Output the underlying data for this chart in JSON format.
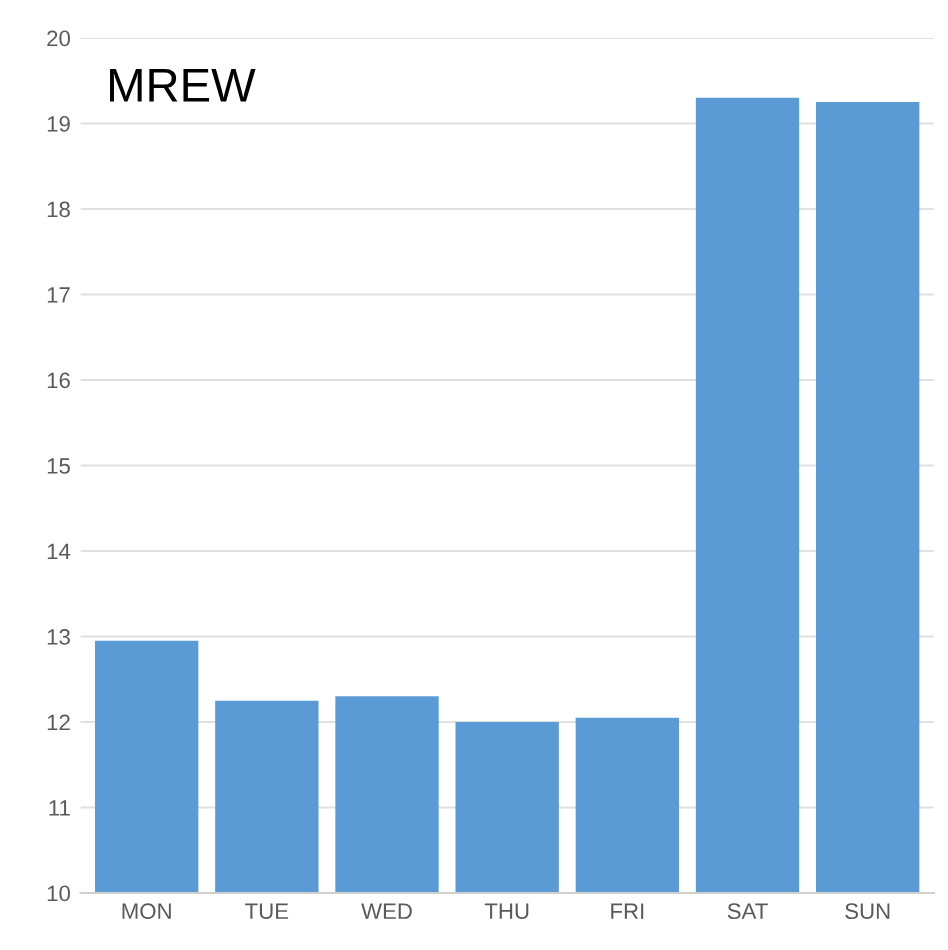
{
  "chart_data": {
    "type": "bar",
    "title": "MREW",
    "categories": [
      "MON",
      "TUE",
      "WED",
      "THU",
      "FRI",
      "SAT",
      "SUN"
    ],
    "values": [
      12.95,
      12.25,
      12.3,
      12.0,
      12.05,
      19.3,
      19.25
    ],
    "color": "#5b9bd5",
    "ylim": [
      10,
      20
    ],
    "yticks": [
      10,
      11,
      12,
      13,
      14,
      15,
      16,
      17,
      18,
      19,
      20
    ],
    "grid": "y"
  }
}
